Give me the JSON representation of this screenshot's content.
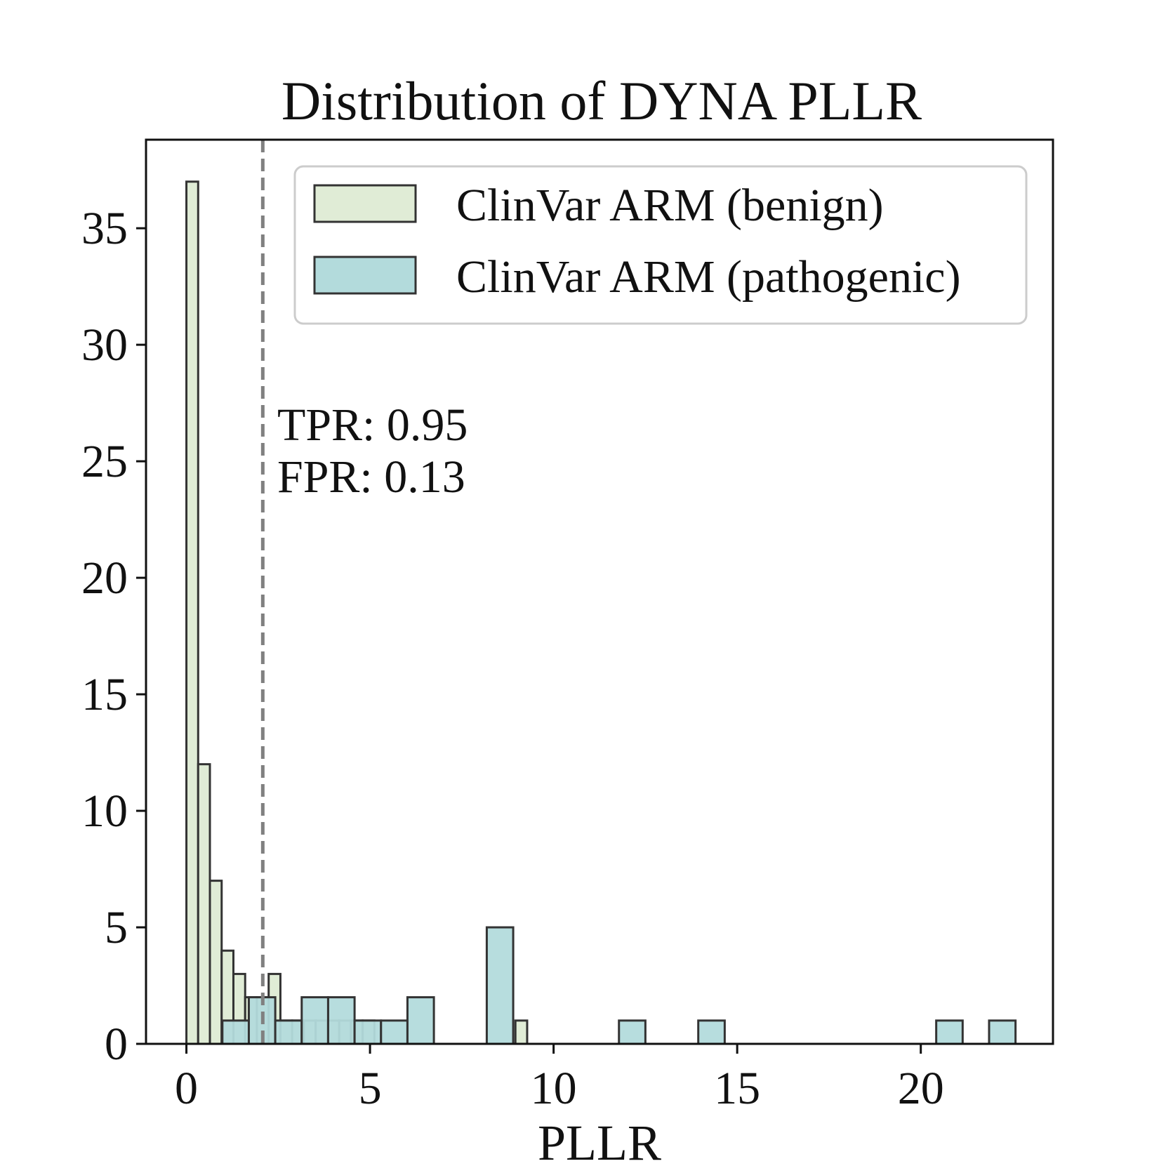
{
  "chart_data": {
    "type": "histogram",
    "title": "Distribution of DYNA PLLR",
    "xlabel": "PLLR",
    "ylabel": "",
    "xlim": [
      -1.1,
      23.6
    ],
    "ylim": [
      0,
      38.8
    ],
    "xticks": [
      0,
      5,
      10,
      15,
      20
    ],
    "yticks": [
      0,
      5,
      10,
      15,
      20,
      25,
      30,
      35
    ],
    "grid": false,
    "legend_position": "top-right",
    "series": [
      {
        "name": "ClinVar ARM (benign)",
        "color": "#e0ecd6",
        "bin_width": 0.32,
        "bins": [
          {
            "x0": 0.0,
            "count": 37
          },
          {
            "x0": 0.32,
            "count": 12
          },
          {
            "x0": 0.64,
            "count": 7
          },
          {
            "x0": 0.96,
            "count": 4
          },
          {
            "x0": 1.28,
            "count": 3
          },
          {
            "x0": 1.6,
            "count": 2
          },
          {
            "x0": 1.92,
            "count": 2
          },
          {
            "x0": 2.24,
            "count": 3
          },
          {
            "x0": 2.56,
            "count": 1
          },
          {
            "x0": 2.88,
            "count": 1
          },
          {
            "x0": 3.2,
            "count": 1
          },
          {
            "x0": 3.52,
            "count": 1
          },
          {
            "x0": 3.84,
            "count": 1
          },
          {
            "x0": 4.16,
            "count": 1
          },
          {
            "x0": 4.48,
            "count": 1
          },
          {
            "x0": 4.8,
            "count": 1
          },
          {
            "x0": 8.96,
            "count": 1
          }
        ]
      },
      {
        "name": "ClinVar ARM (pathogenic)",
        "color": "#b3dbdc",
        "bin_width": 0.72,
        "bins": [
          {
            "x0": 0.98,
            "count": 1
          },
          {
            "x0": 1.7,
            "count": 2
          },
          {
            "x0": 2.42,
            "count": 1
          },
          {
            "x0": 3.14,
            "count": 2
          },
          {
            "x0": 3.86,
            "count": 2
          },
          {
            "x0": 4.58,
            "count": 1
          },
          {
            "x0": 5.3,
            "count": 1
          },
          {
            "x0": 6.02,
            "count": 2
          },
          {
            "x0": 8.18,
            "count": 5
          },
          {
            "x0": 11.78,
            "count": 1
          },
          {
            "x0": 13.94,
            "count": 1
          },
          {
            "x0": 20.42,
            "count": 1
          },
          {
            "x0": 21.86,
            "count": 1
          }
        ]
      }
    ],
    "threshold_x": 2.08,
    "annotation_lines": [
      "TPR: 0.95",
      "FPR: 0.13"
    ],
    "edge_color": "#333333",
    "threshold_color": "#808080"
  }
}
